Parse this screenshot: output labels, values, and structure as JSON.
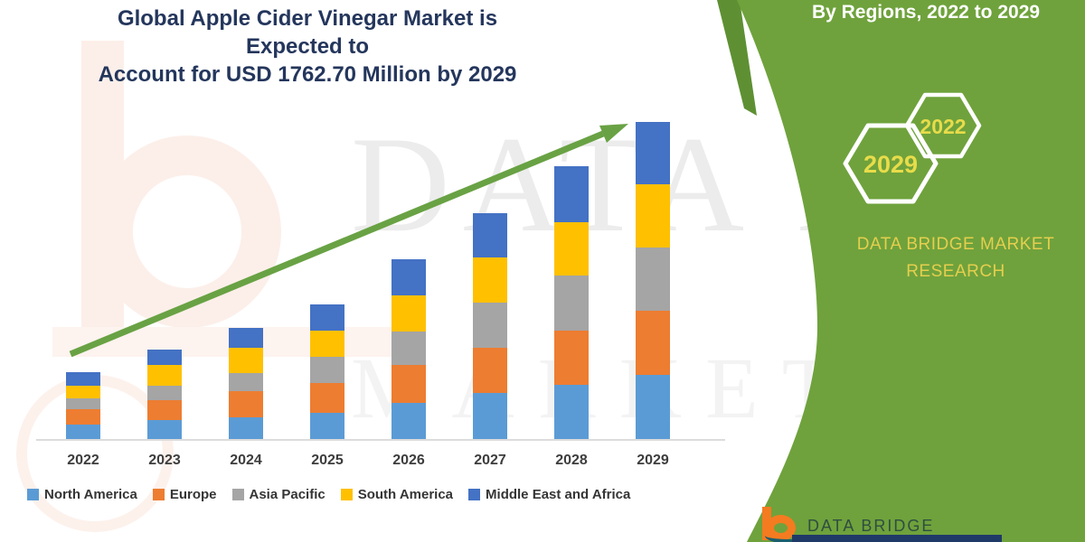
{
  "header": {
    "title_line1": "Global Apple Cider Vinegar Market is Expected to",
    "title_line2": "Account for USD 1762.70 Million by 2029"
  },
  "watermark": {
    "line1": "DATA BRIDGE",
    "line2": "MARKET RE"
  },
  "side_panel": {
    "title": "By Regions, 2022 to 2029",
    "hexagons": [
      {
        "label": "2029"
      },
      {
        "label": "2022"
      }
    ],
    "brand_line1": "DATA BRIDGE MARKET",
    "brand_line2": "RESEARCH",
    "background_color": "#6fa23c",
    "accent_text_color": "#e5ce4e"
  },
  "footer_logo": {
    "wordmark": "DATA BRIDGE"
  },
  "chart_data": {
    "type": "bar",
    "subtype": "stacked-vertical",
    "title": "Global Apple Cider Vinegar Market is Expected to Account for USD 1762.70 Million by 2029",
    "unit": "USD Million",
    "categories": [
      "2022",
      "2023",
      "2024",
      "2025",
      "2026",
      "2027",
      "2028",
      "2029"
    ],
    "series": [
      {
        "name": "North America",
        "color": "#5B9BD5",
        "values": [
          80,
          105,
          120,
          146,
          200,
          256,
          301,
          357
        ]
      },
      {
        "name": "Europe",
        "color": "#ED7D31",
        "values": [
          85,
          110,
          145,
          165,
          210,
          251,
          301,
          356
        ]
      },
      {
        "name": "Asia Pacific",
        "color": "#A5A5A5",
        "values": [
          60,
          80,
          100,
          146,
          190,
          251,
          306,
          352
        ]
      },
      {
        "name": "South America",
        "color": "#FFC000",
        "values": [
          70,
          115,
          140,
          146,
          196,
          251,
          296,
          352
        ]
      },
      {
        "name": "Middle East and Africa",
        "color": "#4472C4",
        "values": [
          75,
          85,
          115,
          147,
          204,
          246,
          311,
          346
        ]
      }
    ],
    "totals_estimated": [
      370,
      495,
      620,
      750,
      1000,
      1255,
      1515,
      1763
    ],
    "annotation": "2029 total equals USD 1762.70 Million (values estimated from bar heights)",
    "axes": {
      "x_visible": true,
      "y_visible": false,
      "gridlines": false
    },
    "legend_position": "bottom",
    "trend_arrow": {
      "present": true,
      "color": "#69a244",
      "direction": "up-right"
    }
  }
}
